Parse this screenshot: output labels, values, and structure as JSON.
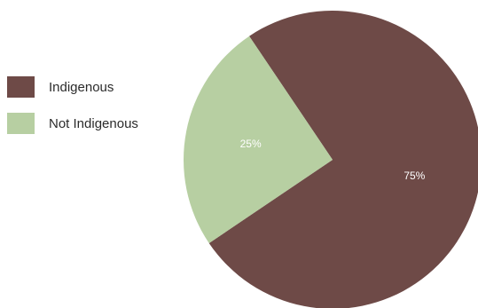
{
  "chart_data": {
    "type": "pie",
    "title": "",
    "categories": [
      "Indigenous",
      "Not Indigenous"
    ],
    "values": [
      75,
      25
    ],
    "value_labels": [
      "75%",
      "25%"
    ],
    "colors": [
      "#6e4a47",
      "#b7cfa2"
    ],
    "legend_position": "left"
  }
}
